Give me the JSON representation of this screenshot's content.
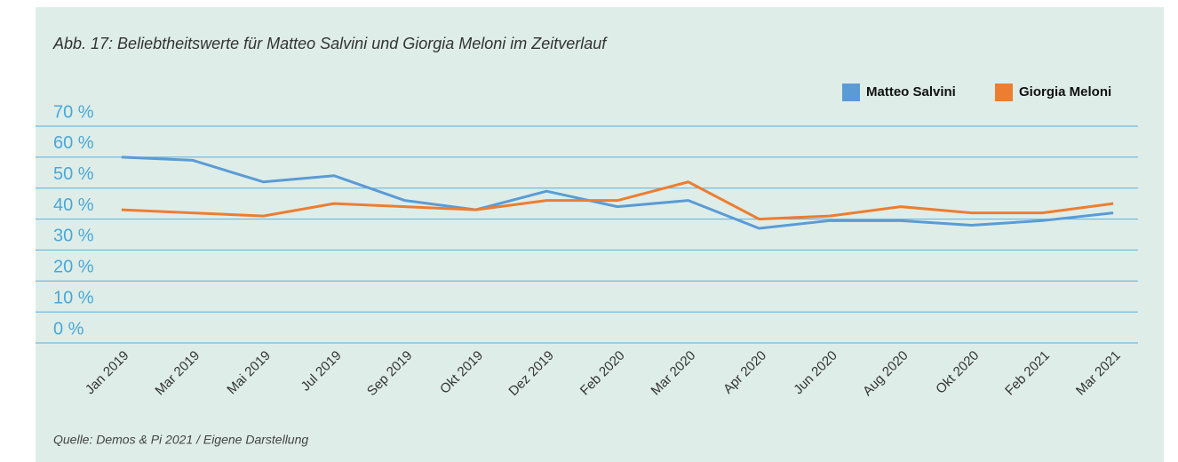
{
  "chart_data": {
    "type": "line",
    "title": "Abb. 17: Beliebtheitswerte für Matteo Salvini und Giorgia Meloni im Zeitverlauf",
    "source": "Quelle: Demos & Pi 2021 / Eigene Darstellung",
    "categories": [
      "Jan 2019",
      "Mar 2019",
      "Mai 2019",
      "Jul 2019",
      "Sep 2019",
      "Okt 2019",
      "Dez 2019",
      "Feb 2020",
      "Mar 2020",
      "Apr 2020",
      "Jun 2020",
      "Aug 2020",
      "Okt 2020",
      "Feb 2021",
      "Mar 2021"
    ],
    "series": [
      {
        "name": "Matteo Salvini",
        "color": "#5b9bd5",
        "values": [
          60,
          59,
          52,
          54,
          46,
          43,
          49,
          44,
          46,
          37,
          39.5,
          39.5,
          38,
          39.5,
          42
        ]
      },
      {
        "name": "Giorgia Meloni",
        "color": "#ed7d31",
        "values": [
          43,
          42,
          41,
          45,
          44,
          43,
          46,
          46,
          52,
          40,
          41,
          44,
          42,
          42,
          45
        ]
      }
    ],
    "ylim": [
      0,
      70
    ],
    "yticks": [
      {
        "value": 0,
        "label": "0 %"
      },
      {
        "value": 10,
        "label": "10 %"
      },
      {
        "value": 20,
        "label": "20 %"
      },
      {
        "value": 30,
        "label": "30 %"
      },
      {
        "value": 40,
        "label": "40 %"
      },
      {
        "value": 50,
        "label": "50 %"
      },
      {
        "value": 60,
        "label": "60 %"
      },
      {
        "value": 70,
        "label": "70 %"
      }
    ],
    "grid": true,
    "legend": "top-right"
  }
}
